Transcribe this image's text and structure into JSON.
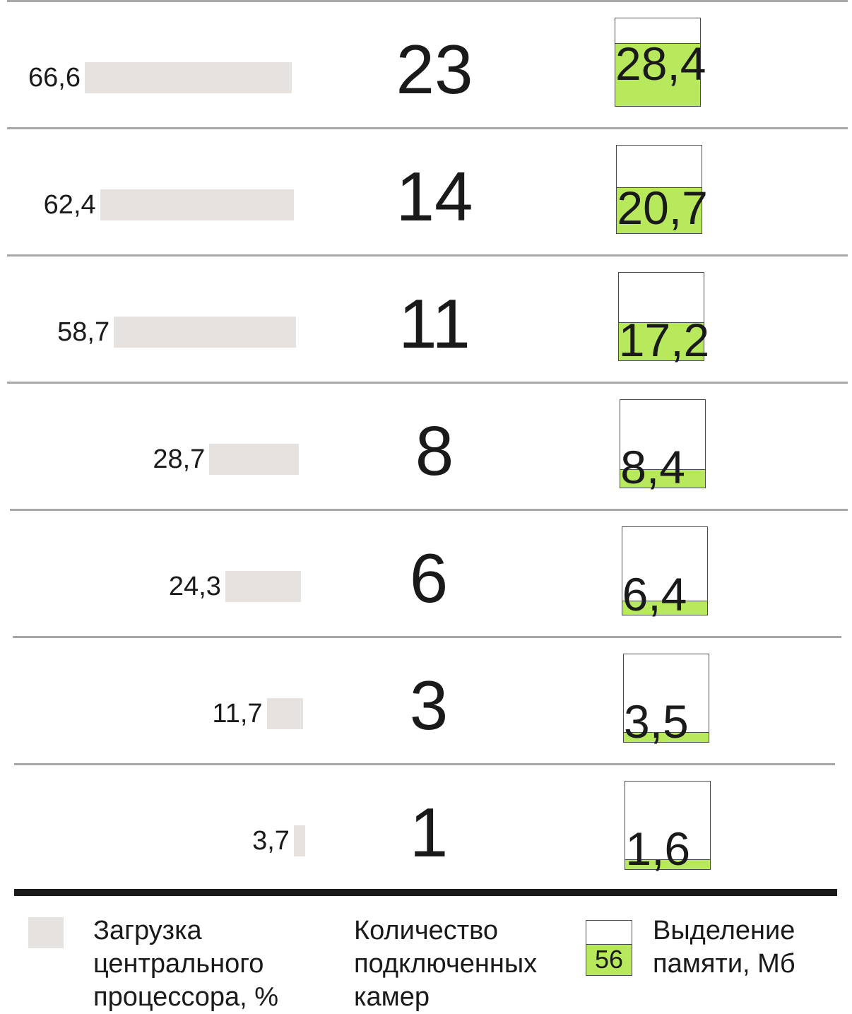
{
  "chart_data": {
    "type": "table",
    "title": "",
    "columns": [
      "Загрузка центрального процессора, %",
      "Количество подключенных камер",
      "Выделение памяти, Мб"
    ],
    "rows": [
      {
        "cpu_label": "66,6",
        "cpu": 66.6,
        "cameras": "23",
        "memory_label": "28,4",
        "memory": 28.4
      },
      {
        "cpu_label": "62,4",
        "cpu": 62.4,
        "cameras": "14",
        "memory_label": "20,7",
        "memory": 20.7
      },
      {
        "cpu_label": "58,7",
        "cpu": 58.7,
        "cameras": "11",
        "memory_label": "17,2",
        "memory": 17.2
      },
      {
        "cpu_label": "28,7",
        "cpu": 28.7,
        "cameras": "8",
        "memory_label": "8,4",
        "memory": 8.4
      },
      {
        "cpu_label": "24,3",
        "cpu": 24.3,
        "cameras": "6",
        "memory_label": "6,4",
        "memory": 6.4
      },
      {
        "cpu_label": "11,7",
        "cpu": 11.7,
        "cameras": "3",
        "memory_label": "3,5",
        "memory": 3.5
      },
      {
        "cpu_label": "3,7",
        "cpu": 3.7,
        "cameras": "1",
        "memory_label": "1,6",
        "memory": 1.6
      }
    ],
    "legend": {
      "cpu": "Загрузка\nцентрального\nпроцессора, %",
      "cameras": "Количество\nподключенных\nкамер",
      "memory": "Выделение\nпамяти, Мб",
      "memory_sample_value": "56"
    },
    "colors": {
      "cpu_bar": "#e5e2df",
      "memory_fill": "#b8e85c",
      "divider": "#a7a7a7",
      "bottom_rule": "#1a1a1a"
    }
  }
}
